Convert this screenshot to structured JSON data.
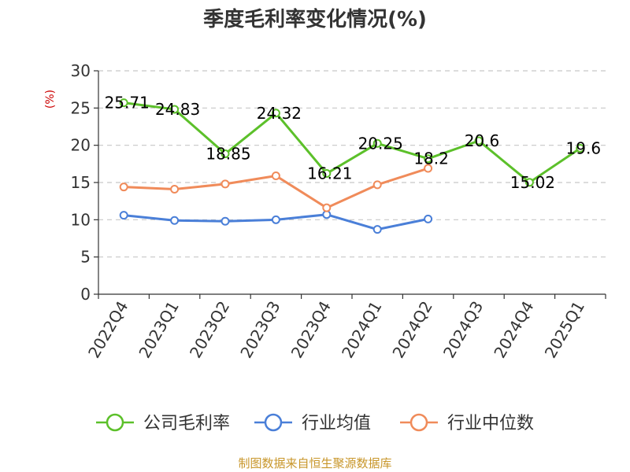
{
  "chart_data": {
    "type": "line",
    "title": "季度毛利率变化情况(%)",
    "ylabel": "(%)",
    "ylim": [
      0,
      30
    ],
    "yticks": [
      0,
      5,
      10,
      15,
      20,
      25,
      30
    ],
    "grid": true,
    "legend_position": "bottom",
    "categories": [
      "2022Q4",
      "2023Q1",
      "2023Q2",
      "2023Q3",
      "2023Q4",
      "2024Q1",
      "2024Q2",
      "2024Q3",
      "2024Q4",
      "2025Q1"
    ],
    "series": [
      {
        "name": "公司毛利率",
        "color": "#5cc02a",
        "values": [
          25.71,
          24.83,
          18.85,
          24.32,
          16.21,
          20.25,
          18.2,
          20.6,
          15.02,
          19.6
        ],
        "labels": [
          "25.71",
          "24.83",
          "18.85",
          "24.32",
          "16.21",
          "20.25",
          "18.2",
          "20.6",
          "15.02",
          "19.6"
        ]
      },
      {
        "name": "行业均值",
        "color": "#4a7fd8",
        "values": [
          10.6,
          9.9,
          9.8,
          10.0,
          10.7,
          8.7,
          10.1,
          null,
          null,
          null
        ]
      },
      {
        "name": "行业中位数",
        "color": "#f08b5a",
        "values": [
          14.4,
          14.1,
          14.8,
          15.9,
          11.6,
          14.7,
          16.9,
          null,
          null,
          null
        ]
      }
    ],
    "source": "制图数据来自恒生聚源数据库"
  }
}
